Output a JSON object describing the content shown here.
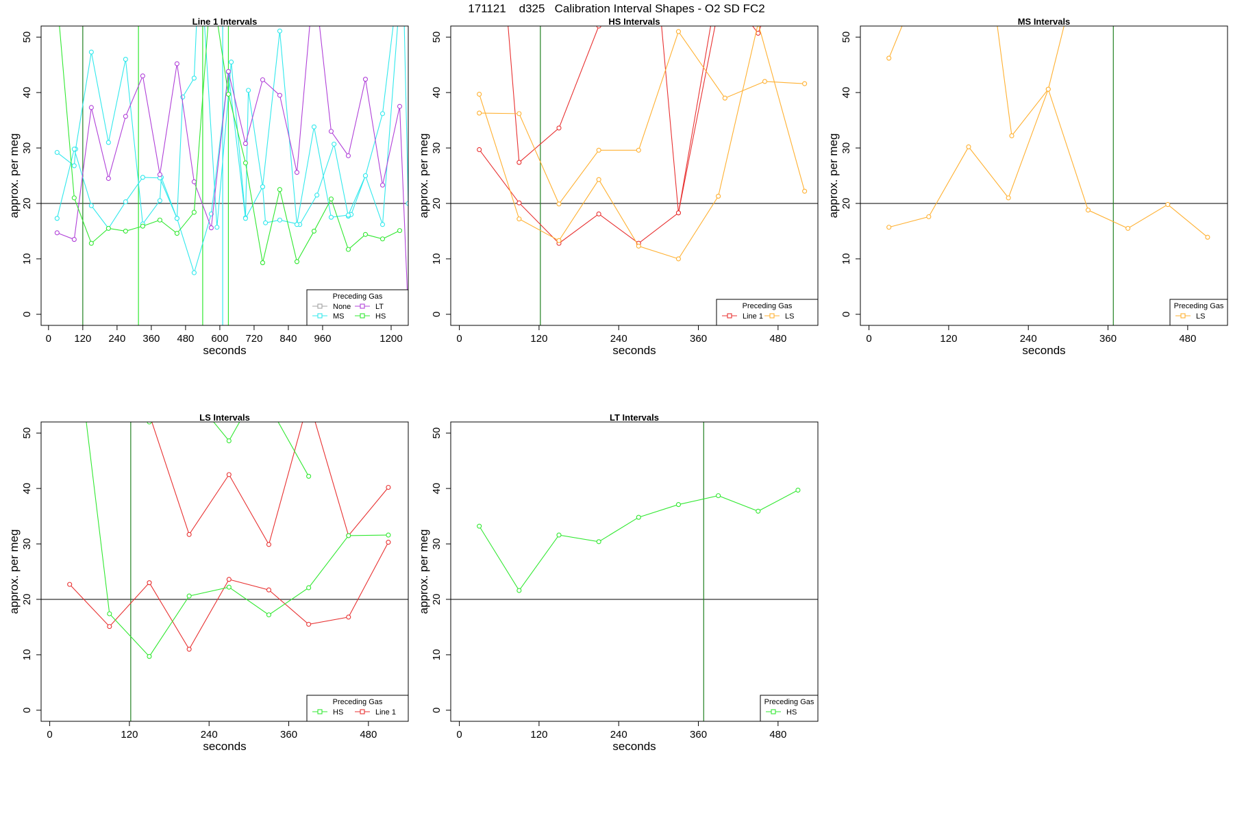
{
  "title": "171121    d325   Calibration Interval Shapes - O2 SD FC2",
  "colors": {
    "None": "#a0a0a0",
    "LT": "#b040d8",
    "MS": "#30e8ec",
    "HS": "#30e830",
    "Line 1": "#e83030",
    "LS": "#ffb030",
    "reference": "#303030",
    "vline": "#208020"
  },
  "chart_data": [
    {
      "type": "line",
      "title": "Line 1 Intervals",
      "xlabel": "seconds",
      "ylabel": "approx. per meg",
      "xlim": [
        -26,
        1260
      ],
      "ylim": [
        -2,
        52
      ],
      "xticks": [
        0,
        120,
        240,
        360,
        480,
        600,
        720,
        840,
        960,
        1200
      ],
      "yticks": [
        0,
        10,
        20,
        30,
        40,
        50
      ],
      "hline": 20,
      "vlines": [
        {
          "x": 120,
          "color": "vline"
        },
        {
          "x": 315,
          "color": "HS"
        },
        {
          "x": 540,
          "color": "HS"
        },
        {
          "x": 630,
          "color": "HS"
        },
        {
          "x": 610,
          "color": "MS"
        }
      ],
      "legend": {
        "title": "Preceding Gas",
        "position": "bottom-right",
        "columns": 2,
        "entries": [
          "None",
          "LT",
          "MS",
          "HS"
        ]
      },
      "series": [
        {
          "name": "MS",
          "x": [
            30,
            90,
            95,
            150,
            210,
            270,
            330,
            390,
            395,
            450,
            470,
            510,
            530,
            590,
            640,
            690,
            700,
            750,
            760,
            810,
            880,
            940,
            1000,
            1050,
            1060,
            1110,
            1170,
            1240,
            1260
          ],
          "y": [
            29.2,
            26.8,
            29.8,
            47.3,
            31,
            46,
            16.3,
            20.5,
            24.7,
            17.3,
            39.2,
            42.6,
            66,
            15.7,
            45.5,
            17.4,
            40.4,
            23,
            16.5,
            17,
            16.2,
            21.5,
            30.7,
            17.7,
            18,
            25,
            36.2,
            66,
            20
          ]
        },
        {
          "name": "MS",
          "x": [
            30,
            90,
            150,
            210,
            270,
            330,
            390,
            450,
            510,
            570,
            630,
            690,
            750,
            810,
            870,
            930,
            990,
            1050,
            1110,
            1170,
            1230
          ],
          "y": [
            17.3,
            29.8,
            19.6,
            15.5,
            20.3,
            24.7,
            24.6,
            17.3,
            7.5,
            18.1,
            43.7,
            17.3,
            23,
            51.1,
            16.2,
            33.8,
            17.5,
            17.9,
            25,
            16.2,
            57
          ]
        },
        {
          "name": "LT",
          "x": [
            30,
            90,
            150,
            210,
            270,
            330,
            390,
            450,
            510,
            570,
            630,
            690,
            750,
            810,
            870,
            930,
            990,
            1050,
            1110,
            1170,
            1230,
            1260
          ],
          "y": [
            14.7,
            13.5,
            37.3,
            24.5,
            35.7,
            43,
            25.2,
            45.2,
            23.9,
            15.6,
            43.8,
            30.8,
            42.3,
            39.5,
            25.6,
            61,
            33,
            28.6,
            42.4,
            23.3,
            37.5,
            0
          ]
        },
        {
          "name": "HS",
          "x": [
            30,
            90,
            150,
            210,
            270,
            330,
            390,
            450,
            510,
            570,
            630,
            690,
            750,
            810,
            870,
            930,
            990,
            1050,
            1110,
            1170,
            1230
          ],
          "y": [
            57,
            21,
            12.8,
            15.5,
            15,
            15.9,
            17,
            14.6,
            18.4,
            60,
            39.7,
            27.3,
            9.3,
            22.5,
            9.5,
            15,
            20.8,
            11.7,
            14.4,
            13.6,
            15.1
          ]
        }
      ]
    },
    {
      "type": "line",
      "title": "HS Intervals",
      "xlabel": "seconds",
      "ylabel": "approx. per meg",
      "xlim": [
        -13,
        540
      ],
      "ylim": [
        -2,
        52
      ],
      "xticks": [
        0,
        120,
        240,
        360,
        480
      ],
      "yticks": [
        0,
        10,
        20,
        30,
        40,
        50
      ],
      "hline": 20,
      "vlines": [
        {
          "x": 122,
          "color": "vline"
        }
      ],
      "legend": {
        "title": "Preceding Gas",
        "position": "bottom-right",
        "columns": 2,
        "entries": [
          "Line 1",
          "LS"
        ]
      },
      "series": [
        {
          "name": "Line 1",
          "x": [
            30,
            90,
            150,
            210,
            270,
            330,
            390,
            450,
            470
          ],
          "y": [
            29.7,
            20.1,
            12.8,
            18.1,
            12.8,
            18.3,
            60,
            50.7,
            57
          ]
        },
        {
          "name": "Line 1",
          "x": [
            70,
            90,
            150,
            210
          ],
          "y": [
            57,
            27.4,
            33.6,
            52
          ]
        },
        {
          "name": "Line 1",
          "x": [
            300,
            330,
            390,
            440
          ],
          "y": [
            58,
            18.3,
            55,
            56
          ]
        },
        {
          "name": "LS",
          "x": [
            30,
            90,
            150,
            210,
            270,
            330,
            390,
            450,
            520
          ],
          "y": [
            39.7,
            17.2,
            13.3,
            24.3,
            12.3,
            10,
            21.3,
            52.5,
            22.2
          ]
        },
        {
          "name": "LS",
          "x": [
            30,
            90,
            150,
            210,
            270,
            330,
            400,
            460,
            520
          ],
          "y": [
            36.3,
            36.2,
            19.9,
            29.6,
            29.6,
            51,
            39,
            42,
            41.6
          ]
        }
      ]
    },
    {
      "type": "line",
      "title": "MS Intervals",
      "xlabel": "seconds",
      "ylabel": "approx. per meg",
      "xlim": [
        -13,
        540
      ],
      "ylim": [
        -2,
        52
      ],
      "xticks": [
        0,
        120,
        240,
        360,
        480
      ],
      "yticks": [
        0,
        10,
        20,
        30,
        40,
        50
      ],
      "hline": 20,
      "vlines": [
        {
          "x": 368,
          "color": "vline"
        }
      ],
      "legend": {
        "title": "Preceding Gas",
        "position": "bottom-right",
        "columns": 1,
        "entries": [
          "LS"
        ]
      },
      "series": [
        {
          "name": "LS",
          "x": [
            30,
            60,
            190,
            215,
            270,
            300
          ],
          "y": [
            46.2,
            55,
            55,
            32.2,
            40.6,
            55
          ]
        },
        {
          "name": "LS",
          "x": [
            30,
            90,
            150,
            210,
            270,
            330,
            390,
            450,
            510
          ],
          "y": [
            15.7,
            17.6,
            30.2,
            21,
            40.6,
            18.8,
            15.5,
            19.8,
            13.9
          ]
        }
      ]
    },
    {
      "type": "line",
      "title": "LS Intervals",
      "xlabel": "seconds",
      "ylabel": "approx. per meg",
      "xlim": [
        -13,
        540
      ],
      "ylim": [
        -2,
        52
      ],
      "xticks": [
        0,
        120,
        240,
        360,
        480
      ],
      "yticks": [
        0,
        10,
        20,
        30,
        40,
        50
      ],
      "hline": 20,
      "vlines": [
        {
          "x": 122,
          "color": "vline"
        }
      ],
      "legend": {
        "title": "Preceding Gas",
        "position": "bottom-right",
        "columns": 2,
        "entries": [
          "HS",
          "Line 1"
        ]
      },
      "series": [
        {
          "name": "Line 1",
          "x": [
            30,
            90,
            150,
            210,
            270,
            330,
            390,
            450,
            510
          ],
          "y": [
            22.7,
            15.1,
            23,
            11,
            23.6,
            21.7,
            15.5,
            16.8,
            30.3
          ]
        },
        {
          "name": "Line 1",
          "x": [
            140,
            210,
            270,
            330,
            390,
            450,
            510
          ],
          "y": [
            57,
            31.7,
            42.5,
            29.9,
            56,
            31.5,
            40.2
          ]
        },
        {
          "name": "HS",
          "x": [
            50,
            90,
            150,
            210,
            270,
            330,
            390,
            450,
            510
          ],
          "y": [
            57,
            17.4,
            9.7,
            20.6,
            22.2,
            17.2,
            22.1,
            31.5,
            31.6
          ]
        },
        {
          "name": "HS",
          "x": [
            150,
            170,
            240,
            270,
            300
          ],
          "y": [
            52,
            53,
            53,
            48.6,
            55
          ]
        },
        {
          "name": "HS",
          "x": [
            330,
            390
          ],
          "y": [
            55,
            42.2
          ]
        }
      ]
    },
    {
      "type": "line",
      "title": "LT Intervals",
      "xlabel": "seconds",
      "ylabel": "approx. per meg",
      "xlim": [
        -13,
        540
      ],
      "ylim": [
        -2,
        52
      ],
      "xticks": [
        0,
        120,
        240,
        360,
        480
      ],
      "yticks": [
        0,
        10,
        20,
        30,
        40,
        50
      ],
      "hline": 20,
      "vlines": [
        {
          "x": 368,
          "color": "vline"
        }
      ],
      "legend": {
        "title": "Preceding Gas",
        "position": "bottom-right",
        "columns": 1,
        "entries": [
          "HS"
        ]
      },
      "series": [
        {
          "name": "HS",
          "x": [
            30,
            90,
            150,
            210,
            270,
            330,
            390,
            450,
            510
          ],
          "y": [
            33.2,
            21.6,
            31.6,
            30.4,
            34.8,
            37.1,
            38.7,
            35.9,
            39.7
          ]
        }
      ]
    }
  ]
}
